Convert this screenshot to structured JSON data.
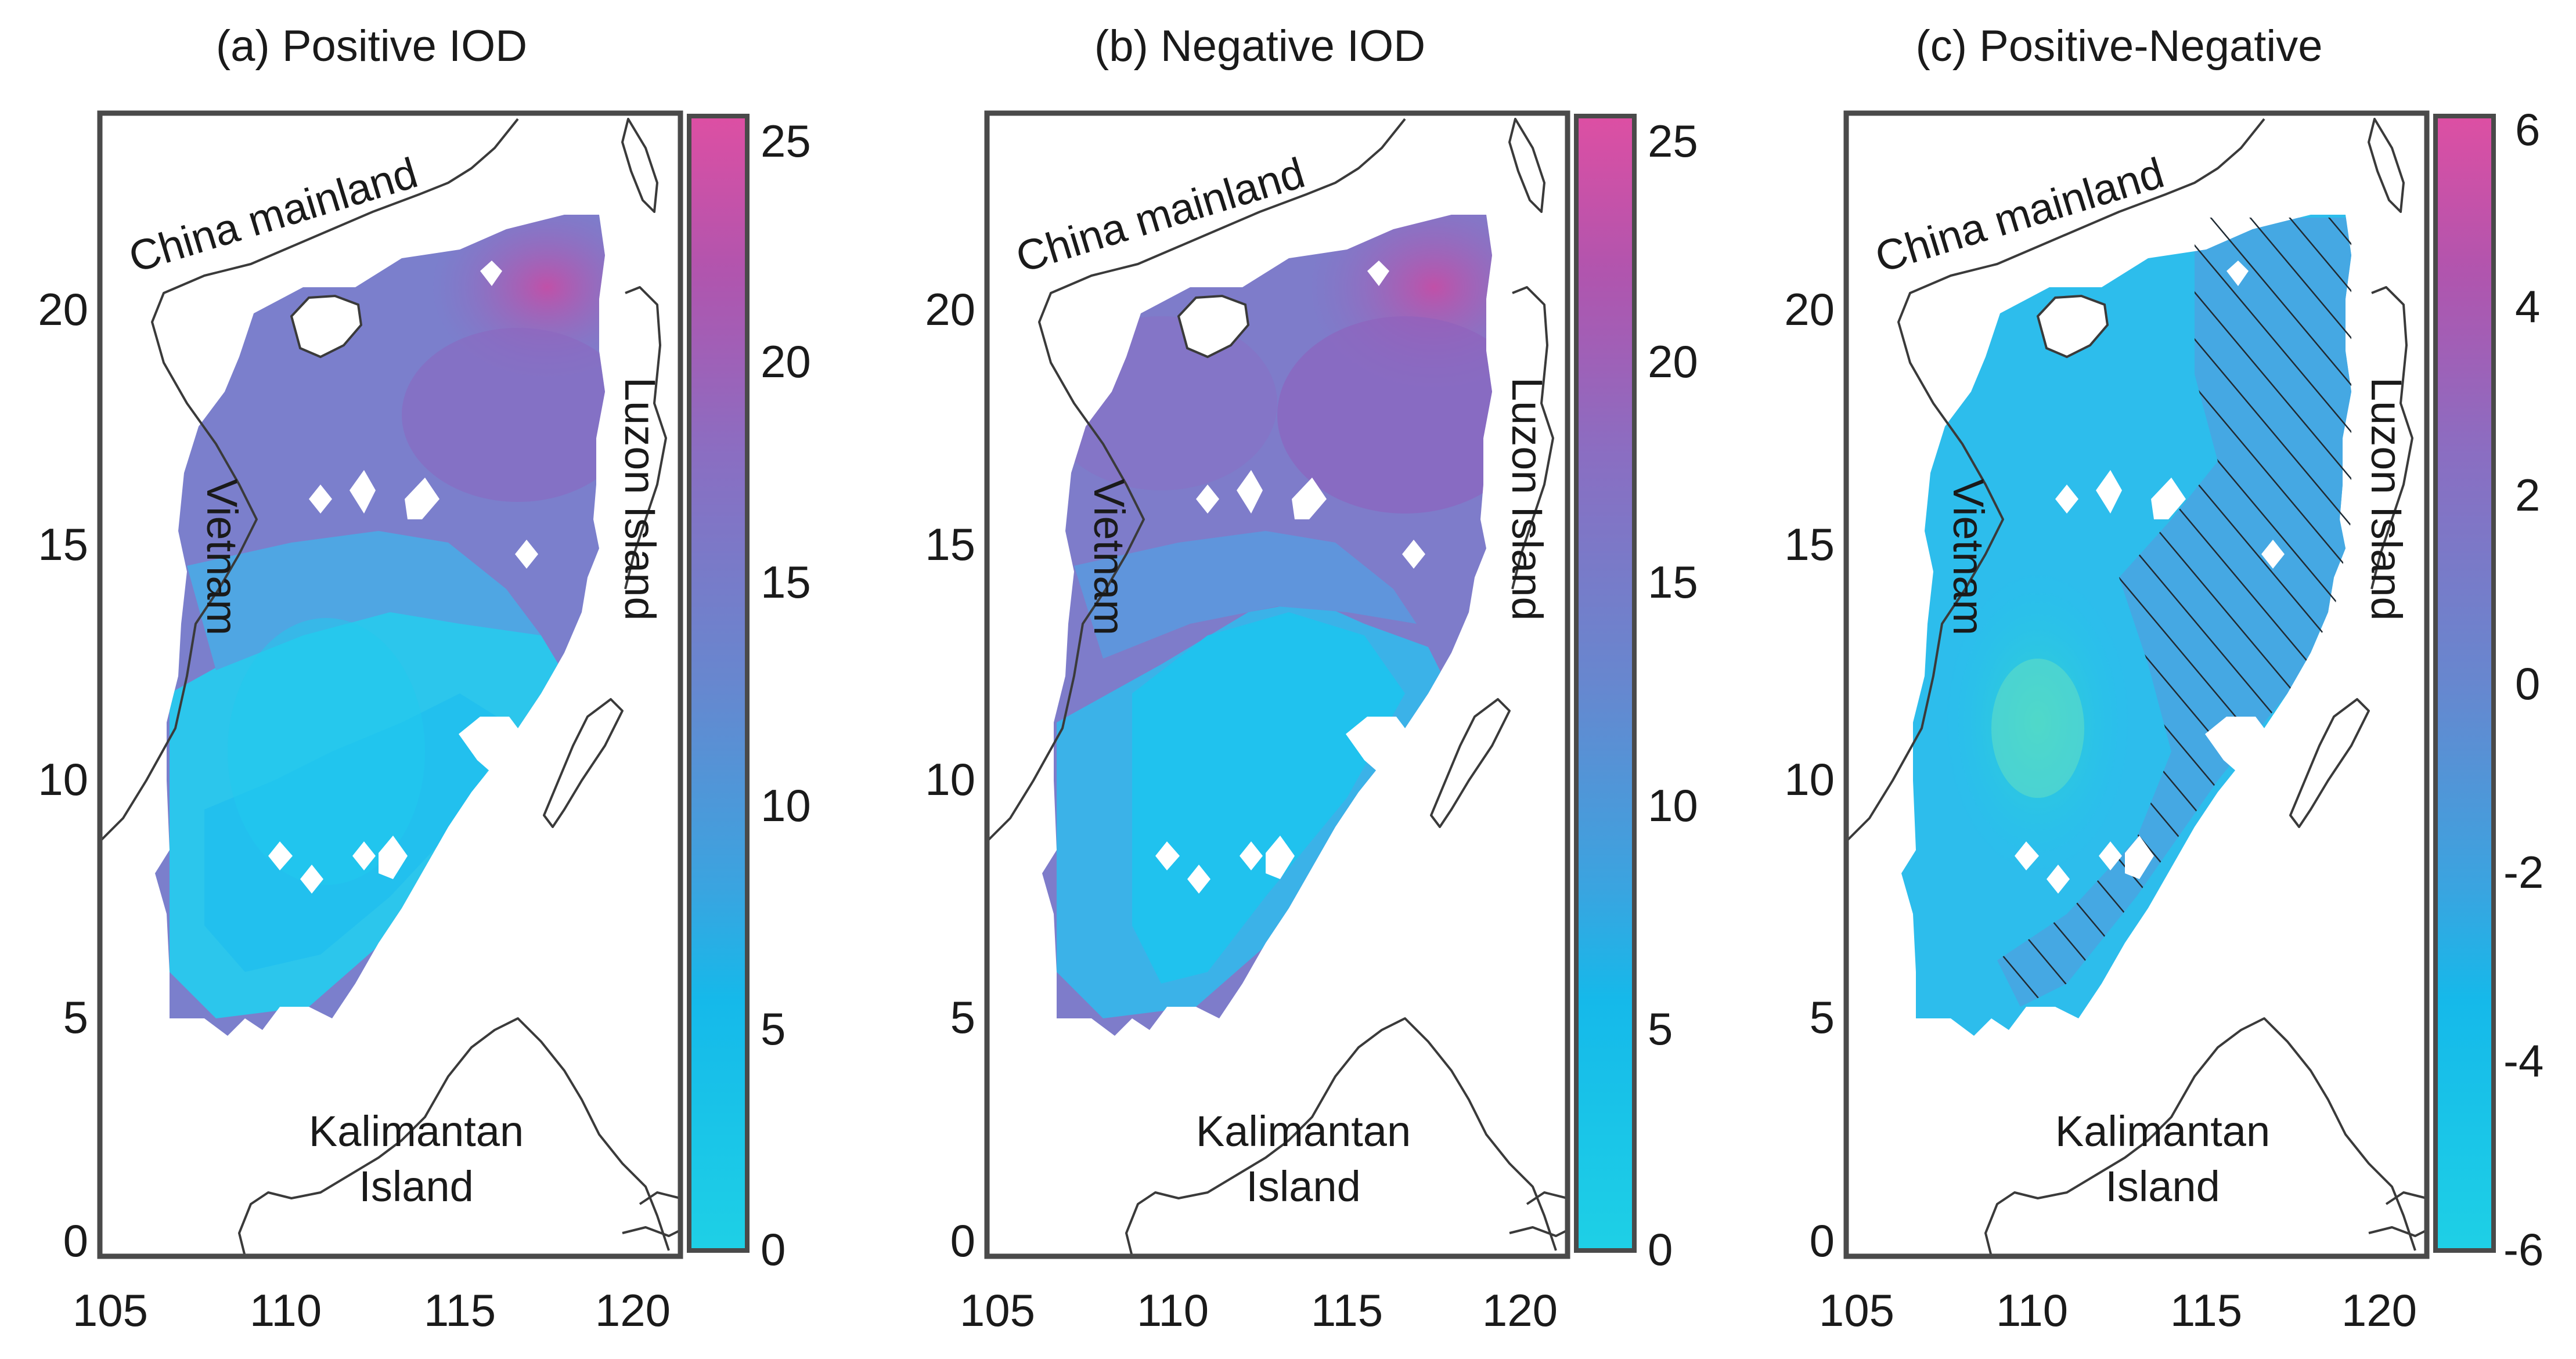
{
  "figure": {
    "panels": [
      {
        "id": "a",
        "title": "(a) Positive IOD",
        "x_ticks": [
          "105",
          "110",
          "115",
          "120"
        ],
        "y_ticks": [
          "0",
          "5",
          "10",
          "15",
          "20"
        ],
        "colorbar_ticks": [
          "0",
          "5",
          "10",
          "15",
          "20",
          "25"
        ],
        "colorbar_range": [
          0,
          25
        ],
        "hatched": false,
        "labels": {
          "china": "China mainland",
          "vietnam": "Vietnam",
          "luzon": "Luzon Island",
          "kalimantan_1": "Kalimantan",
          "kalimantan_2": "Island"
        }
      },
      {
        "id": "b",
        "title": "(b) Negative IOD",
        "x_ticks": [
          "105",
          "110",
          "115",
          "120"
        ],
        "y_ticks": [
          "0",
          "5",
          "10",
          "15",
          "20"
        ],
        "colorbar_ticks": [
          "0",
          "5",
          "10",
          "15",
          "20",
          "25"
        ],
        "colorbar_range": [
          0,
          25
        ],
        "hatched": false,
        "labels": {
          "china": "China mainland",
          "vietnam": "Vietnam",
          "luzon": "Luzon Island",
          "kalimantan_1": "Kalimantan",
          "kalimantan_2": "Island"
        }
      },
      {
        "id": "c",
        "title": "(c) Positive-Negative",
        "x_ticks": [
          "105",
          "110",
          "115",
          "120"
        ],
        "y_ticks": [
          "0",
          "5",
          "10",
          "15",
          "20"
        ],
        "colorbar_ticks": [
          "-6",
          "-4",
          "-2",
          "0",
          "2",
          "4",
          "6"
        ],
        "colorbar_range": [
          -6,
          6
        ],
        "hatched": true,
        "labels": {
          "china": "China mainland",
          "vietnam": "Vietnam",
          "luzon": "Luzon Island",
          "kalimantan_1": "Kalimantan",
          "kalimantan_2": "Island"
        }
      }
    ],
    "colorbar_colors": [
      "#1ed0e6",
      "#18bde8",
      "#3aa7e2",
      "#5f8fd6",
      "#7c79c4",
      "#9a62b6",
      "#c24ea8",
      "#de4fa3"
    ],
    "ocean_colors": {
      "low": "#1cc7ec",
      "mid": "#4fa6e3",
      "high": "#8b6dc4",
      "peak": "#c24ea8"
    }
  }
}
